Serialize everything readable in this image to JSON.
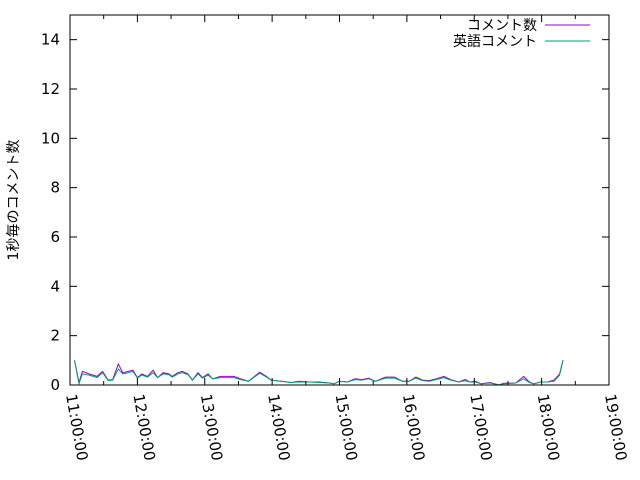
{
  "chart_data": {
    "type": "line",
    "title": "",
    "xlabel": "",
    "ylabel": "1秒毎のコメント数",
    "xlim": [
      "11:00:00",
      "19:00:00"
    ],
    "ylim": [
      0,
      15
    ],
    "x_ticks": [
      "11:00:00",
      "12:00:00",
      "13:00:00",
      "14:00:00",
      "15:00:00",
      "16:00:00",
      "17:00:00",
      "18:00:00",
      "19:00:00"
    ],
    "y_ticks": [
      "0",
      "2",
      "4",
      "6",
      "8",
      "10",
      "12",
      "14"
    ],
    "grid": false,
    "legend_position": "top-right",
    "x": [
      "11:04",
      "11:08",
      "11:11",
      "11:17",
      "11:24",
      "11:29",
      "11:34",
      "11:38",
      "11:43",
      "11:47",
      "11:52",
      "11:56",
      "12:00",
      "12:04",
      "12:09",
      "12:14",
      "12:18",
      "12:23",
      "12:28",
      "12:31",
      "12:36",
      "12:40",
      "12:45",
      "12:49",
      "12:54",
      "12:58",
      "13:03",
      "13:07",
      "13:14",
      "13:26",
      "13:32",
      "13:39",
      "13:43",
      "13:49",
      "13:55",
      "13:59",
      "14:08",
      "14:17",
      "14:24",
      "14:33",
      "14:42",
      "14:51",
      "14:55",
      "15:00",
      "15:07",
      "15:14",
      "15:20",
      "15:26",
      "15:32",
      "15:41",
      "15:49",
      "15:56",
      "16:02",
      "16:08",
      "16:14",
      "16:20",
      "16:26",
      "16:33",
      "16:39",
      "16:46",
      "16:52",
      "16:56",
      "17:01",
      "17:06",
      "17:14",
      "17:22",
      "17:26",
      "17:37",
      "17:44",
      "17:49",
      "17:53",
      "17:59",
      "18:05",
      "18:11",
      "18:16",
      "18:19"
    ],
    "series": [
      {
        "name": "コメント数",
        "color": "#9400d3",
        "values": [
          1.0,
          0.1,
          0.55,
          0.45,
          0.35,
          0.55,
          0.2,
          0.22,
          0.85,
          0.5,
          0.55,
          0.6,
          0.3,
          0.45,
          0.35,
          0.6,
          0.3,
          0.5,
          0.45,
          0.35,
          0.5,
          0.55,
          0.45,
          0.2,
          0.5,
          0.3,
          0.45,
          0.25,
          0.35,
          0.35,
          0.25,
          0.15,
          0.3,
          0.52,
          0.35,
          0.2,
          0.15,
          0.1,
          0.15,
          0.12,
          0.12,
          0.08,
          0.05,
          0.15,
          0.12,
          0.25,
          0.22,
          0.28,
          0.15,
          0.32,
          0.32,
          0.15,
          0.15,
          0.32,
          0.2,
          0.18,
          0.25,
          0.35,
          0.22,
          0.12,
          0.22,
          0.12,
          0.15,
          0.05,
          0.1,
          0.0,
          0.07,
          0.08,
          0.35,
          0.12,
          0.05,
          0.12,
          0.12,
          0.2,
          0.45,
          1.0
        ]
      },
      {
        "name": "英語コメント",
        "color": "#009e73",
        "values": [
          1.0,
          0.05,
          0.45,
          0.4,
          0.3,
          0.5,
          0.18,
          0.2,
          0.65,
          0.45,
          0.5,
          0.55,
          0.28,
          0.4,
          0.32,
          0.5,
          0.3,
          0.45,
          0.42,
          0.32,
          0.45,
          0.5,
          0.42,
          0.2,
          0.45,
          0.28,
          0.4,
          0.25,
          0.3,
          0.3,
          0.22,
          0.15,
          0.28,
          0.48,
          0.32,
          0.2,
          0.15,
          0.1,
          0.12,
          0.12,
          0.1,
          0.08,
          0.05,
          0.15,
          0.12,
          0.22,
          0.2,
          0.25,
          0.15,
          0.28,
          0.28,
          0.15,
          0.15,
          0.28,
          0.18,
          0.15,
          0.22,
          0.3,
          0.2,
          0.12,
          0.18,
          0.12,
          0.12,
          0.05,
          0.08,
          0.0,
          0.05,
          0.08,
          0.25,
          0.1,
          0.05,
          0.12,
          0.12,
          0.15,
          0.4,
          1.0
        ]
      }
    ]
  }
}
